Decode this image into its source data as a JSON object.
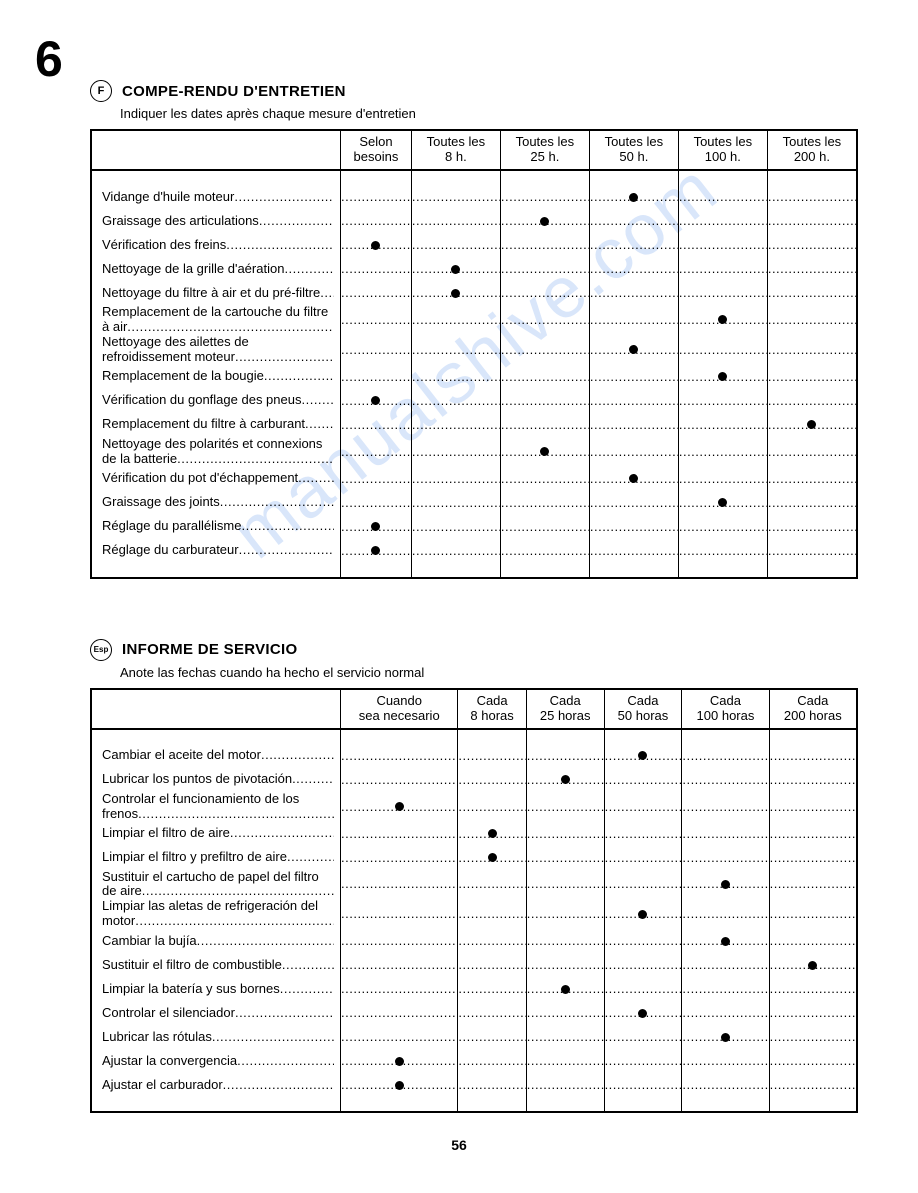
{
  "chapter_number": "6",
  "page_number": "56",
  "watermark_text": "manualshive.com",
  "sections": [
    {
      "lang_code": "F",
      "title": "COMPE-RENDU D'ENTRETIEN",
      "subtitle": "Indiquer les dates après chaque mesure d'entretien",
      "columns": [
        "Selon besoins",
        "Toutes les 8 h.",
        "Toutes les 25 h.",
        "Toutes les 50 h.",
        "Toutes les 100 h.",
        "Toutes les 200 h."
      ],
      "rows": [
        {
          "label": "Vidange d'huile moteur",
          "marks": [
            0,
            0,
            0,
            1,
            0,
            0
          ]
        },
        {
          "label": "Graissage des articulations",
          "marks": [
            0,
            0,
            1,
            0,
            0,
            0
          ]
        },
        {
          "label": "Vérification des freins",
          "marks": [
            1,
            0,
            0,
            0,
            0,
            0
          ]
        },
        {
          "label": "Nettoyage de la grille d'aération",
          "marks": [
            0,
            1,
            0,
            0,
            0,
            0
          ]
        },
        {
          "label": "Nettoyage du filtre à air et du pré-filtre",
          "marks": [
            0,
            1,
            0,
            0,
            0,
            0
          ]
        },
        {
          "label": "Remplacement de la cartouche du filtre à air",
          "marks": [
            0,
            0,
            0,
            0,
            1,
            0
          ]
        },
        {
          "label": "Nettoyage des ailettes de refroidissement moteur",
          "marks": [
            0,
            0,
            0,
            1,
            0,
            0
          ]
        },
        {
          "label": "Remplacement de la bougie",
          "marks": [
            0,
            0,
            0,
            0,
            1,
            0
          ]
        },
        {
          "label": "Vérification du gonflage des pneus",
          "marks": [
            1,
            0,
            0,
            0,
            0,
            0
          ]
        },
        {
          "label": "Remplacement du filtre à carburant",
          "marks": [
            0,
            0,
            0,
            0,
            0,
            1
          ]
        },
        {
          "label": "Nettoyage des polarités et connexions de la batterie",
          "marks": [
            0,
            0,
            1,
            0,
            0,
            0
          ]
        },
        {
          "label": "Vérification du pot d'échappement",
          "marks": [
            0,
            0,
            0,
            1,
            0,
            0
          ]
        },
        {
          "label": "Graissage des joints",
          "marks": [
            0,
            0,
            0,
            0,
            1,
            0
          ]
        },
        {
          "label": "Réglage du parallélisme",
          "marks": [
            1,
            0,
            0,
            0,
            0,
            0
          ]
        },
        {
          "label": "Réglage du carburateur",
          "marks": [
            1,
            0,
            0,
            0,
            0,
            0
          ]
        }
      ]
    },
    {
      "lang_code": "Esp",
      "title": "INFORME DE SERVICIO",
      "subtitle": "Anote las fechas cuando ha hecho el servicio normal",
      "columns": [
        "Cuando sea necesario",
        "Cada 8 horas",
        "Cada 25 horas",
        "Cada 50 horas",
        "Cada 100 horas",
        "Cada 200 horas"
      ],
      "rows": [
        {
          "label": "Cambiar el aceite del motor",
          "marks": [
            0,
            0,
            0,
            1,
            0,
            0
          ]
        },
        {
          "label": "Lubricar los puntos de pivotación",
          "marks": [
            0,
            0,
            1,
            0,
            0,
            0
          ]
        },
        {
          "label": "Controlar el funcionamiento de los frenos",
          "marks": [
            1,
            0,
            0,
            0,
            0,
            0
          ]
        },
        {
          "label": "Limpiar el filtro de aire",
          "marks": [
            0,
            1,
            0,
            0,
            0,
            0
          ]
        },
        {
          "label": "Limpiar el filtro y prefiltro de aire",
          "marks": [
            0,
            1,
            0,
            0,
            0,
            0
          ]
        },
        {
          "label": "Sustituir el cartucho de papel del filtro de aire",
          "marks": [
            0,
            0,
            0,
            0,
            1,
            0
          ]
        },
        {
          "label": "Limpiar las aletas de refrigeración del motor",
          "marks": [
            0,
            0,
            0,
            1,
            0,
            0
          ]
        },
        {
          "label": "Cambiar la bujía",
          "marks": [
            0,
            0,
            0,
            0,
            1,
            0
          ]
        },
        {
          "label": "Sustituir el filtro de combustible",
          "marks": [
            0,
            0,
            0,
            0,
            0,
            1
          ]
        },
        {
          "label": "Limpiar la batería y sus bornes",
          "marks": [
            0,
            0,
            1,
            0,
            0,
            0
          ]
        },
        {
          "label": "Controlar el silenciador",
          "marks": [
            0,
            0,
            0,
            1,
            0,
            0
          ]
        },
        {
          "label": "Lubricar las rótulas",
          "marks": [
            0,
            0,
            0,
            0,
            1,
            0
          ]
        },
        {
          "label": "Ajustar la convergencia",
          "marks": [
            1,
            0,
            0,
            0,
            0,
            0
          ]
        },
        {
          "label": "Ajustar el carburador",
          "marks": [
            1,
            0,
            0,
            0,
            0,
            0
          ]
        }
      ]
    }
  ]
}
